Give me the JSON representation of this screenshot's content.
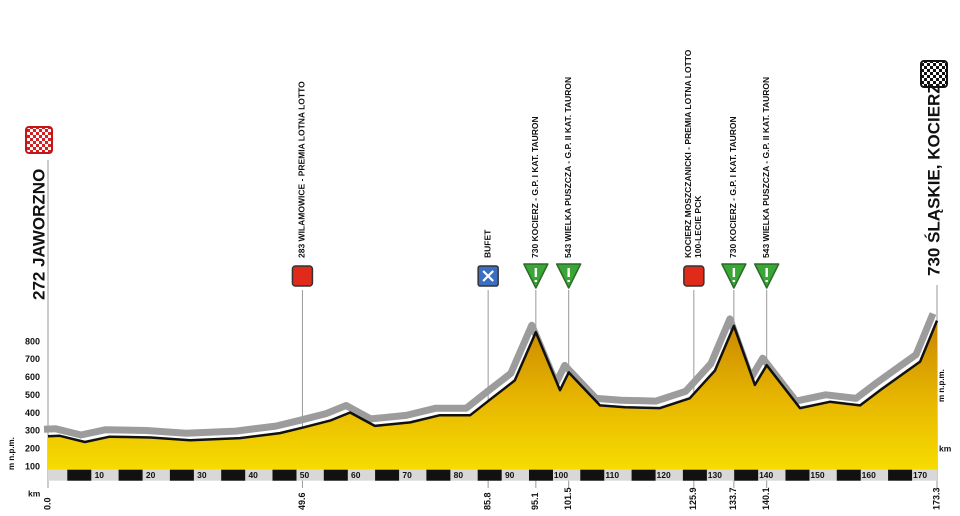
{
  "chart_data": {
    "type": "profile",
    "start": {
      "label": "272 JAWORZNO",
      "km": {
        "value": 0,
        "label": "0.0"
      }
    },
    "finish": {
      "label": "730 ŚLĄSKIE, KOCIERZ",
      "km": 173.3
    },
    "y_label": "m n.p.m.",
    "x_label": "km",
    "km": [
      0,
      2.3,
      7.2,
      12,
      20,
      27.7,
      37.4,
      45.2,
      49.6,
      55,
      58.9,
      63.7,
      70.6,
      76.4,
      82.3,
      86.5,
      91,
      95.1,
      99.8,
      101.5,
      107.6,
      112.5,
      119.3,
      125.1,
      130,
      133.7,
      137.8,
      140.1,
      146.6,
      152.4,
      158.3,
      162.2,
      170,
      173.3
    ],
    "elevation": [
      272,
      275,
      240,
      270,
      265,
      250,
      262,
      290,
      320,
      360,
      405,
      330,
      350,
      390,
      390,
      485,
      585,
      855,
      530,
      630,
      445,
      435,
      430,
      485,
      640,
      890,
      560,
      670,
      430,
      465,
      445,
      530,
      690,
      920
    ],
    "xlim": [
      0,
      173.3
    ],
    "ylim": [
      85,
      950
    ],
    "xticks": [
      10,
      20,
      30,
      40,
      50,
      60,
      70,
      80,
      90,
      100,
      110,
      120,
      130,
      140,
      150,
      160,
      170
    ],
    "yticks": [
      100,
      200,
      300,
      400,
      500,
      600,
      700,
      800
    ],
    "markers": [
      {
        "km": 49.6,
        "icon": "sprint",
        "lines": [
          "283 WILAMOWICE - PREMIA LOTNA LOTTO"
        ]
      },
      {
        "km": 85.8,
        "icon": "feed",
        "lines": [
          "BUFET"
        ]
      },
      {
        "km": 95.1,
        "icon": "climb",
        "lines": [
          "730 KOCIERZ - G.P. I KAT. TAURON"
        ]
      },
      {
        "km": 101.5,
        "icon": "climb",
        "lines": [
          "543 WIELKA PUSZCZA - G.P. II KAT. TAURON"
        ]
      },
      {
        "km": 125.9,
        "icon": "sprint",
        "lines": [
          "KOCIERZ MOSZCZANICKI - PREMIA LOTNA LOTTO",
          "100-LECIE PCK"
        ]
      },
      {
        "km": 133.7,
        "icon": "climb",
        "lines": [
          "730 KOCIERZ - G.P. I KAT. TAURON"
        ]
      },
      {
        "km": 140.1,
        "icon": "climb",
        "lines": [
          "543 WIELKA PUSZCZA - G.P. II KAT. TAURON"
        ]
      }
    ]
  }
}
